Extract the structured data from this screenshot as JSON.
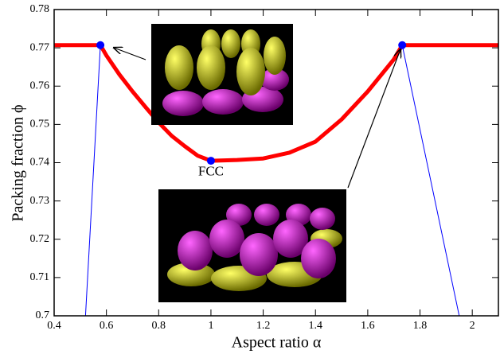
{
  "chart_data": {
    "type": "line",
    "x_label": "Aspect ratio α",
    "y_label": "Packing fraction ϕ",
    "annotation": "FCC",
    "annotation_x": 1.0,
    "annotation_y": 0.7375,
    "xlim": [
      0.4,
      2.1
    ],
    "ylim": [
      0.7,
      0.78
    ],
    "xticks": [
      0.4,
      0.6,
      0.8,
      1,
      1.2,
      1.4,
      1.6,
      1.8,
      2
    ],
    "yticks": [
      0.7,
      0.71,
      0.72,
      0.73,
      0.74,
      0.75,
      0.76,
      0.77,
      0.78
    ],
    "series": [
      {
        "color": "#ff0000",
        "width": 5,
        "x": [
          0.4,
          0.577,
          0.6,
          0.65,
          0.7,
          0.75,
          0.8,
          0.85,
          0.9,
          0.95,
          1.0,
          1.1,
          1.2,
          1.3,
          1.4,
          1.5,
          1.6,
          1.7,
          1.732,
          2.1
        ],
        "values": [
          0.7707,
          0.7707,
          0.768,
          0.763,
          0.7586,
          0.7545,
          0.7505,
          0.747,
          0.7443,
          0.7418,
          0.7405,
          0.7407,
          0.7411,
          0.7426,
          0.7455,
          0.7513,
          0.7586,
          0.767,
          0.7707,
          0.7707
        ]
      },
      {
        "color": "#0000ff",
        "width": 1,
        "x": [
          0.52,
          0.577
        ],
        "values": [
          0.7,
          0.7707
        ]
      },
      {
        "color": "#0000ff",
        "width": 1,
        "x": [
          1.732,
          1.95
        ],
        "values": [
          0.7707,
          0.7
        ]
      },
      {
        "color": "#0000ff",
        "marker": "circle",
        "x": [
          0.577,
          1.0,
          1.732
        ],
        "values": [
          0.7707,
          0.7405,
          0.7707
        ]
      }
    ]
  }
}
